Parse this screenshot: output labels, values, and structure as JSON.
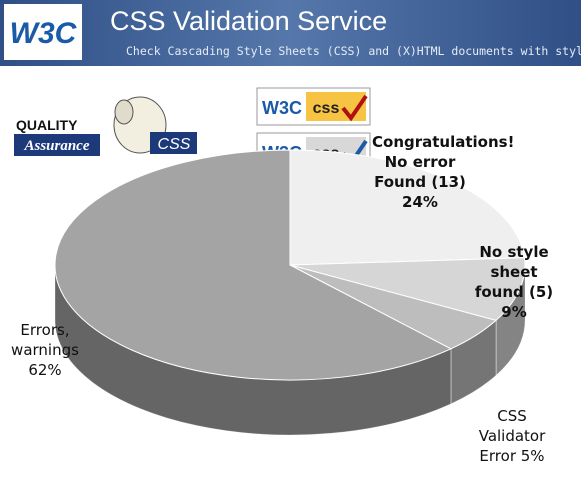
{
  "header": {
    "logo": "W3C",
    "title": "CSS Validation Service",
    "subtitle": "Check Cascading Style Sheets (CSS) and (X)HTML documents with style sheets"
  },
  "logos": {
    "quality": "QUALITY",
    "assurance": "Assurance",
    "sheep": "CSS"
  },
  "badges": [
    {
      "w3c": "W3C",
      "css": "css"
    },
    {
      "w3c": "W3C",
      "css": "css"
    }
  ],
  "chart_data": {
    "type": "pie",
    "categories": [
      "Congratulations! No error Found (13)",
      "No style sheet found (5)",
      "CSS Validator Error",
      "Errors, warnings"
    ],
    "values": [
      24,
      9,
      5,
      62
    ],
    "value_labels": [
      "24%",
      "9%",
      "5%",
      "62%"
    ],
    "colors": [
      "#efefef",
      "#d6d6d6",
      "#bdbdbd",
      "#a4a4a4"
    ]
  }
}
